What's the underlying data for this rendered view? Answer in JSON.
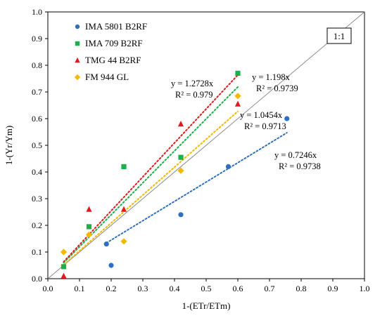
{
  "chart_data": {
    "type": "scatter",
    "title": "",
    "xlabel": "1-(ETr/ETm)",
    "ylabel": "1-(Yr/Ym)",
    "xlim": [
      0,
      1
    ],
    "ylim": [
      0,
      1
    ],
    "x_ticks": [
      "0.0",
      "0.1",
      "0.2",
      "0.3",
      "0.4",
      "0.5",
      "0.6",
      "0.7",
      "0.8",
      "0.9",
      "1.0"
    ],
    "y_ticks": [
      "0.0",
      "0.1",
      "0.2",
      "0.3",
      "0.4",
      "0.5",
      "0.6",
      "0.7",
      "0.8",
      "0.9",
      "1.0"
    ],
    "grid": false,
    "legend_position": "top-left",
    "reference_line": {
      "label": "1:1",
      "slope": 1
    },
    "series": [
      {
        "name": "IMA 5801 B2RF",
        "marker": "circle",
        "color": "#2f6fc0",
        "points": [
          [
            0.185,
            0.13
          ],
          [
            0.2,
            0.05
          ],
          [
            0.42,
            0.24
          ],
          [
            0.57,
            0.42
          ],
          [
            0.755,
            0.6
          ]
        ],
        "trend": {
          "slope": 0.7246,
          "range": [
            0.185,
            0.755
          ],
          "equation": "y = 0.7246x",
          "r2": "R² = 0.9738"
        }
      },
      {
        "name": "IMA 709 B2RF",
        "marker": "square",
        "color": "#1bb04a",
        "points": [
          [
            0.05,
            0.045
          ],
          [
            0.13,
            0.195
          ],
          [
            0.24,
            0.42
          ],
          [
            0.42,
            0.455
          ],
          [
            0.6,
            0.77
          ]
        ],
        "trend": {
          "slope": 1.198,
          "range": [
            0.05,
            0.6
          ],
          "equation": "y = 1.198x",
          "r2": "R² = 0.9739"
        }
      },
      {
        "name": "TMG 44 B2RF",
        "marker": "triangle",
        "color": "#e31a1c",
        "points": [
          [
            0.05,
            0.01
          ],
          [
            0.13,
            0.26
          ],
          [
            0.24,
            0.26
          ],
          [
            0.42,
            0.58
          ],
          [
            0.6,
            0.655
          ]
        ],
        "trend": {
          "slope": 1.2728,
          "range": [
            0.05,
            0.6
          ],
          "equation": "y = 1.2728x",
          "r2": "R² = 0.979"
        }
      },
      {
        "name": "FM 944 GL",
        "marker": "diamond",
        "color": "#f5b800",
        "points": [
          [
            0.05,
            0.1
          ],
          [
            0.13,
            0.165
          ],
          [
            0.24,
            0.14
          ],
          [
            0.42,
            0.405
          ],
          [
            0.6,
            0.685
          ]
        ],
        "trend": {
          "slope": 1.0454,
          "range": [
            0.05,
            0.6
          ],
          "equation": "y = 1.0454x",
          "r2": "R² = 0.9713"
        }
      }
    ]
  }
}
